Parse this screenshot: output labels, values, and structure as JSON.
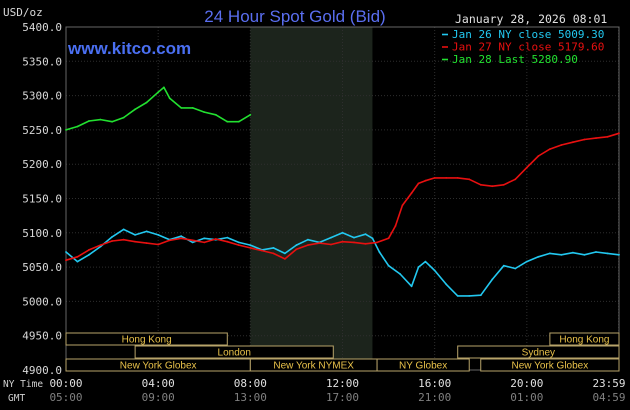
{
  "chart_data": {
    "type": "line",
    "title": "24 Hour Spot Gold (Bid)",
    "watermark": "www.kitco.com",
    "timestamp": "January 28, 2026 08:01",
    "ylabel": "USD/oz",
    "ylim": [
      4900,
      5400
    ],
    "y_ticks": [
      "5400.0",
      "5350.0",
      "5300.0",
      "5250.0",
      "5200.0",
      "5150.0",
      "5100.0",
      "5050.0",
      "5000.0",
      "4950.0",
      "4900.0"
    ],
    "xlim": [
      0,
      24
    ],
    "x_ticks_ny": [
      "00:00",
      "04:00",
      "08:00",
      "12:00",
      "16:00",
      "20:00",
      "23:59"
    ],
    "x_ticks_gmt": [
      "05:00",
      "09:00",
      "13:00",
      "17:00",
      "21:00",
      "01:00",
      "04:59"
    ],
    "x_tick_hours": [
      0,
      4,
      8,
      12,
      16,
      20,
      23.983
    ],
    "row_label_ny": "NY Time",
    "row_label_gmt": "GMT",
    "shaded_hours": [
      8,
      13.3
    ],
    "grid": true,
    "legend_position": "top-right",
    "series": [
      {
        "name": "Jan 26 NY close 5009.30",
        "color": "#22c8f0",
        "x": [
          0,
          0.5,
          1,
          1.5,
          2,
          2.5,
          3,
          3.5,
          4,
          4.5,
          5,
          5.5,
          6,
          6.5,
          7,
          7.5,
          8,
          8.5,
          9,
          9.5,
          10,
          10.5,
          11,
          11.5,
          12,
          12.5,
          13,
          13.3,
          13.6,
          14,
          14.5,
          15,
          15.3,
          15.6,
          16,
          16.5,
          17,
          17.5,
          18,
          18.5,
          19,
          19.5,
          20,
          20.5,
          21,
          21.5,
          22,
          22.5,
          23,
          23.5,
          24
        ],
        "values": [
          5072,
          5058,
          5068,
          5080,
          5094,
          5105,
          5097,
          5102,
          5097,
          5090,
          5095,
          5086,
          5092,
          5090,
          5093,
          5086,
          5082,
          5075,
          5078,
          5070,
          5082,
          5090,
          5086,
          5093,
          5100,
          5093,
          5098,
          5092,
          5072,
          5052,
          5040,
          5022,
          5050,
          5058,
          5045,
          5025,
          5008,
          5008,
          5009,
          5032,
          5052,
          5048,
          5058,
          5065,
          5070,
          5068,
          5071,
          5068,
          5072,
          5070,
          5068
        ]
      },
      {
        "name": "Jan 27 NY close 5179.60",
        "color": "#e81010",
        "x": [
          0,
          0.5,
          1,
          1.5,
          2,
          2.5,
          3,
          3.5,
          4,
          4.5,
          5,
          5.5,
          6,
          6.5,
          7,
          7.5,
          8,
          8.5,
          9,
          9.5,
          10,
          10.5,
          11,
          11.5,
          12,
          12.5,
          13,
          13.5,
          14,
          14.3,
          14.6,
          15,
          15.3,
          15.6,
          16,
          16.5,
          17,
          17.5,
          18,
          18.5,
          19,
          19.5,
          20,
          20.5,
          21,
          21.5,
          22,
          22.5,
          23,
          23.5,
          24
        ],
        "values": [
          5060,
          5065,
          5075,
          5082,
          5088,
          5090,
          5087,
          5085,
          5083,
          5089,
          5092,
          5089,
          5086,
          5091,
          5087,
          5082,
          5078,
          5074,
          5070,
          5062,
          5076,
          5082,
          5085,
          5083,
          5087,
          5086,
          5084,
          5086,
          5092,
          5110,
          5140,
          5158,
          5172,
          5176,
          5180,
          5180,
          5180,
          5178,
          5170,
          5168,
          5170,
          5178,
          5195,
          5212,
          5222,
          5228,
          5232,
          5236,
          5238,
          5240,
          5245
        ]
      },
      {
        "name": "Jan 28 Last 5280.90",
        "color": "#22e030",
        "x": [
          0,
          0.5,
          1,
          1.5,
          2,
          2.5,
          3,
          3.5,
          4,
          4.25,
          4.5,
          5,
          5.5,
          6,
          6.5,
          7,
          7.5,
          8
        ],
        "values": [
          5250,
          5255,
          5263,
          5265,
          5262,
          5268,
          5280,
          5290,
          5305,
          5312,
          5296,
          5282,
          5282,
          5276,
          5272,
          5262,
          5262,
          5272
        ]
      }
    ],
    "sessions": [
      {
        "name": "Hong Kong",
        "row": 0,
        "start": 0,
        "end": 7
      },
      {
        "name": "Hong Kong",
        "row": 0,
        "start": 21,
        "end": 24
      },
      {
        "name": "London",
        "row": 1,
        "start": 3,
        "end": 11.6
      },
      {
        "name": "Sydney",
        "row": 1,
        "start": 17,
        "end": 24
      },
      {
        "name": "New York Globex",
        "row": 2,
        "start": 0,
        "end": 8
      },
      {
        "name": "New York NYMEX",
        "row": 2,
        "start": 8,
        "end": 13.5
      },
      {
        "name": "NY Globex",
        "row": 2,
        "start": 13.5,
        "end": 17.5
      },
      {
        "name": "New York Globex",
        "row": 2,
        "start": 18,
        "end": 24
      }
    ]
  }
}
